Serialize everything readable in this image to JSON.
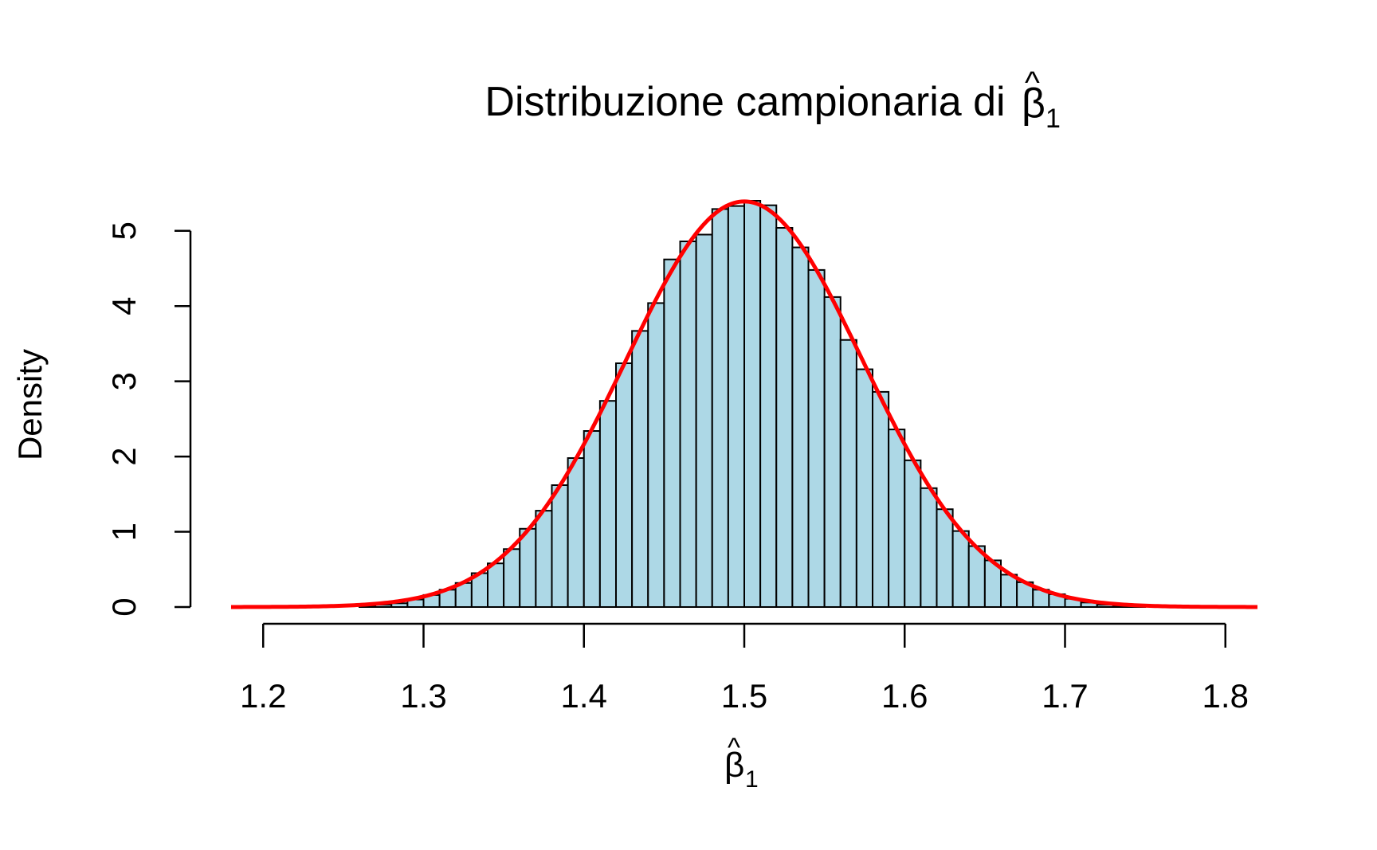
{
  "chart_data": {
    "type": "bar",
    "title": "Distribuzione campionaria di",
    "title_math": {
      "symbol": "β",
      "hat": "^",
      "subscript": "1"
    },
    "xlabel_math": {
      "symbol": "β",
      "hat": "^",
      "subscript": "1"
    },
    "ylabel": "Density",
    "xlim": [
      1.18,
      1.82
    ],
    "ylim": [
      0,
      5.4
    ],
    "x_ticks": [
      "1.2",
      "1.3",
      "1.4",
      "1.5",
      "1.6",
      "1.7",
      "1.8"
    ],
    "x_tick_values": [
      1.2,
      1.3,
      1.4,
      1.5,
      1.6,
      1.7,
      1.8
    ],
    "y_ticks": [
      "0",
      "1",
      "2",
      "3",
      "4",
      "5"
    ],
    "y_tick_values": [
      0,
      1,
      2,
      3,
      4,
      5
    ],
    "bin_width": 0.01,
    "bin_starts": [
      1.26,
      1.27,
      1.28,
      1.29,
      1.3,
      1.31,
      1.32,
      1.33,
      1.34,
      1.35,
      1.36,
      1.37,
      1.38,
      1.39,
      1.4,
      1.41,
      1.42,
      1.43,
      1.44,
      1.45,
      1.46,
      1.47,
      1.48,
      1.49,
      1.5,
      1.51,
      1.52,
      1.53,
      1.54,
      1.55,
      1.56,
      1.57,
      1.58,
      1.59,
      1.6,
      1.61,
      1.62,
      1.63,
      1.64,
      1.65,
      1.66,
      1.67,
      1.68,
      1.69,
      1.7,
      1.71,
      1.72,
      1.73,
      1.74
    ],
    "values": [
      0.01,
      0.03,
      0.05,
      0.1,
      0.16,
      0.23,
      0.32,
      0.45,
      0.58,
      0.77,
      1.04,
      1.28,
      1.62,
      1.98,
      2.34,
      2.74,
      3.24,
      3.67,
      4.04,
      4.62,
      4.86,
      4.95,
      5.29,
      5.33,
      5.4,
      5.34,
      5.04,
      4.78,
      4.48,
      4.12,
      3.55,
      3.16,
      2.86,
      2.36,
      1.95,
      1.58,
      1.3,
      1.01,
      0.81,
      0.62,
      0.43,
      0.33,
      0.23,
      0.17,
      0.11,
      0.06,
      0.03,
      0.02,
      0.01
    ],
    "curve": {
      "type": "normal-density",
      "mean": 1.5,
      "sd": 0.074,
      "x_range": [
        1.18,
        1.82
      ]
    },
    "colors": {
      "bar_fill": "#add8e6",
      "bar_stroke": "#000000",
      "curve": "#ff0000"
    },
    "grid": false
  }
}
